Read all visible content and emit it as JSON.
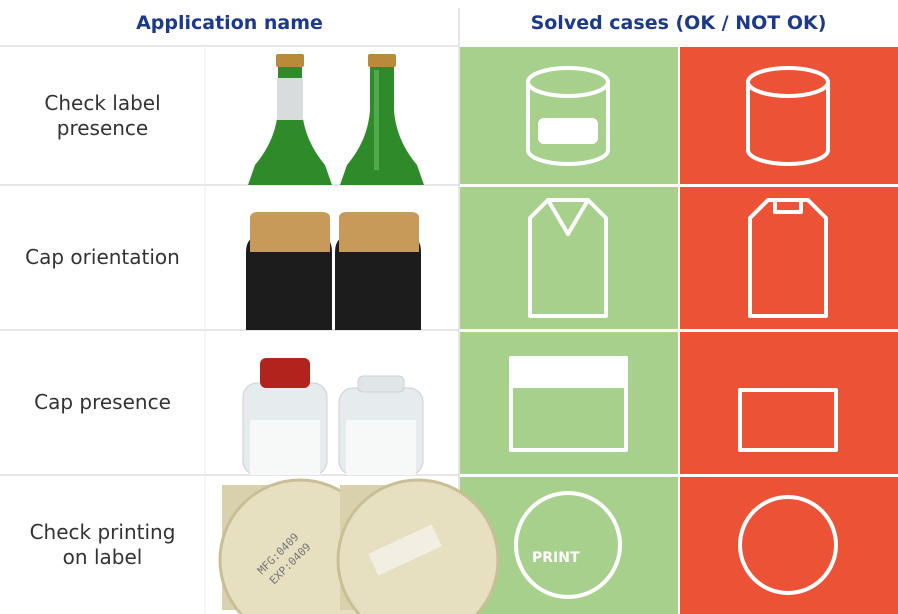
{
  "header": {
    "columns": [
      "Application name",
      "Solved cases (OK / NOT OK)"
    ]
  },
  "table": {
    "rows": [
      {
        "name": "Check label presence"
      },
      {
        "name": "Cap orientation"
      },
      {
        "name": "Cap presence"
      },
      {
        "name": "Check printing on label"
      }
    ]
  },
  "icons": {
    "print_label": "PRINT"
  },
  "photo_text": [
    "MFG:0409",
    "EXP:0409"
  ]
}
